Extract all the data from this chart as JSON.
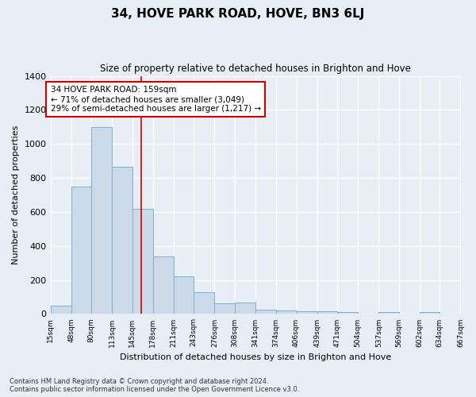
{
  "title": "34, HOVE PARK ROAD, HOVE, BN3 6LJ",
  "subtitle": "Size of property relative to detached houses in Brighton and Hove",
  "xlabel": "Distribution of detached houses by size in Brighton and Hove",
  "ylabel": "Number of detached properties",
  "bar_color": "#ccd9e8",
  "bar_edge_color": "#7aafd4",
  "background_color": "#e8eef5",
  "grid_color": "#ffffff",
  "vline_color": "#cc0000",
  "vline_x": 159,
  "annotation_text": "34 HOVE PARK ROAD: 159sqm\n← 71% of detached houses are smaller (3,049)\n29% of semi-detached houses are larger (1,217) →",
  "footnote1": "Contains HM Land Registry data © Crown copyright and database right 2024.",
  "footnote2": "Contains public sector information licensed under the Open Government Licence v3.0.",
  "bin_edges": [
    15,
    48,
    80,
    113,
    145,
    178,
    211,
    243,
    276,
    308,
    341,
    374,
    406,
    439,
    471,
    504,
    537,
    569,
    602,
    634,
    667
  ],
  "bin_heights": [
    47,
    750,
    1100,
    865,
    620,
    340,
    220,
    130,
    62,
    68,
    27,
    22,
    17,
    14,
    10,
    0,
    10,
    0,
    13,
    0
  ],
  "ylim": [
    0,
    1400
  ],
  "yticks": [
    0,
    200,
    400,
    600,
    800,
    1000,
    1200,
    1400
  ]
}
